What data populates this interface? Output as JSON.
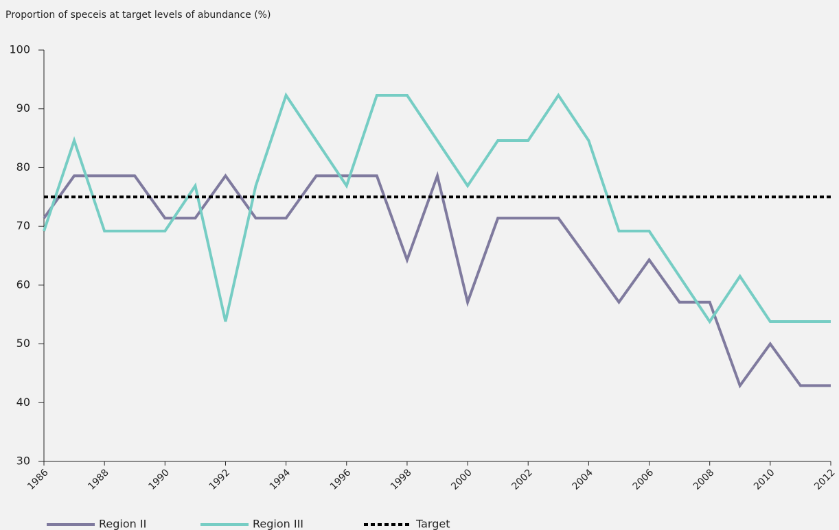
{
  "chart_data": {
    "type": "line",
    "title": "Proportion of speceis at target levels of abundance (%)",
    "x": [
      1986,
      1987,
      1988,
      1989,
      1990,
      1991,
      1992,
      1993,
      1994,
      1995,
      1996,
      1997,
      1998,
      1999,
      2000,
      2001,
      2002,
      2003,
      2004,
      2005,
      2006,
      2007,
      2008,
      2009,
      2010,
      2011,
      2012
    ],
    "series": [
      {
        "name": "Region II",
        "color": "#7f7a9e",
        "values": [
          71.4,
          78.6,
          78.6,
          78.6,
          71.4,
          71.4,
          78.6,
          71.4,
          71.4,
          78.6,
          78.6,
          78.6,
          64.3,
          78.6,
          57.1,
          71.4,
          71.4,
          71.4,
          64.3,
          57.1,
          64.3,
          57.1,
          57.1,
          42.9,
          50,
          42.9,
          42.9
        ]
      },
      {
        "name": "Region III",
        "color": "#76cdc4",
        "values": [
          69.2,
          84.6,
          69.2,
          69.2,
          69.2,
          76.9,
          53.8,
          76.9,
          92.3,
          84.6,
          76.9,
          92.3,
          92.3,
          84.6,
          76.9,
          84.6,
          84.6,
          92.3,
          84.6,
          69.2,
          69.2,
          61.5,
          53.8,
          61.5,
          53.8,
          53.8,
          53.8
        ]
      }
    ],
    "reference_line": {
      "name": "Target",
      "value": 75,
      "color": "#000000"
    },
    "xlim": [
      1986,
      2012
    ],
    "xticks": [
      1986,
      1988,
      1990,
      1992,
      1994,
      1996,
      1998,
      2000,
      2002,
      2004,
      2006,
      2008,
      2010,
      2012
    ],
    "ylim": [
      30,
      100
    ],
    "yticks": [
      30,
      40,
      50,
      60,
      70,
      80,
      90,
      100
    ],
    "grid": false
  }
}
